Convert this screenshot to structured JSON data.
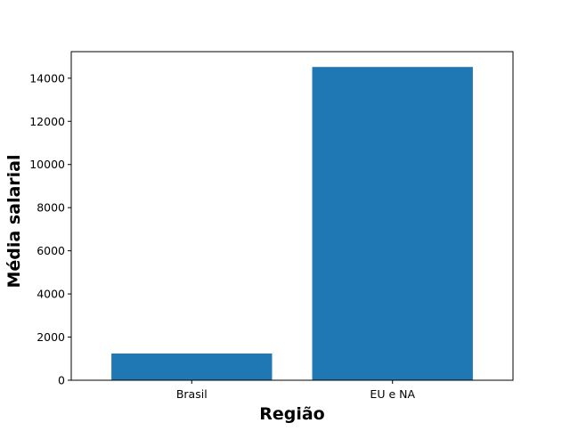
{
  "colors": {
    "bar": "#1f77b4",
    "axis": "#000000",
    "background": "#ffffff"
  },
  "chart_data": {
    "type": "bar",
    "categories": [
      "Brasil",
      "EU e NA"
    ],
    "values": [
      1240,
      14520
    ],
    "title": "",
    "xlabel": "Região",
    "ylabel": "Média salarial",
    "ylim": [
      0,
      15230
    ],
    "yticks": [
      0,
      2000,
      4000,
      6000,
      8000,
      10000,
      12000,
      14000
    ],
    "grid": false,
    "legend": "none"
  }
}
